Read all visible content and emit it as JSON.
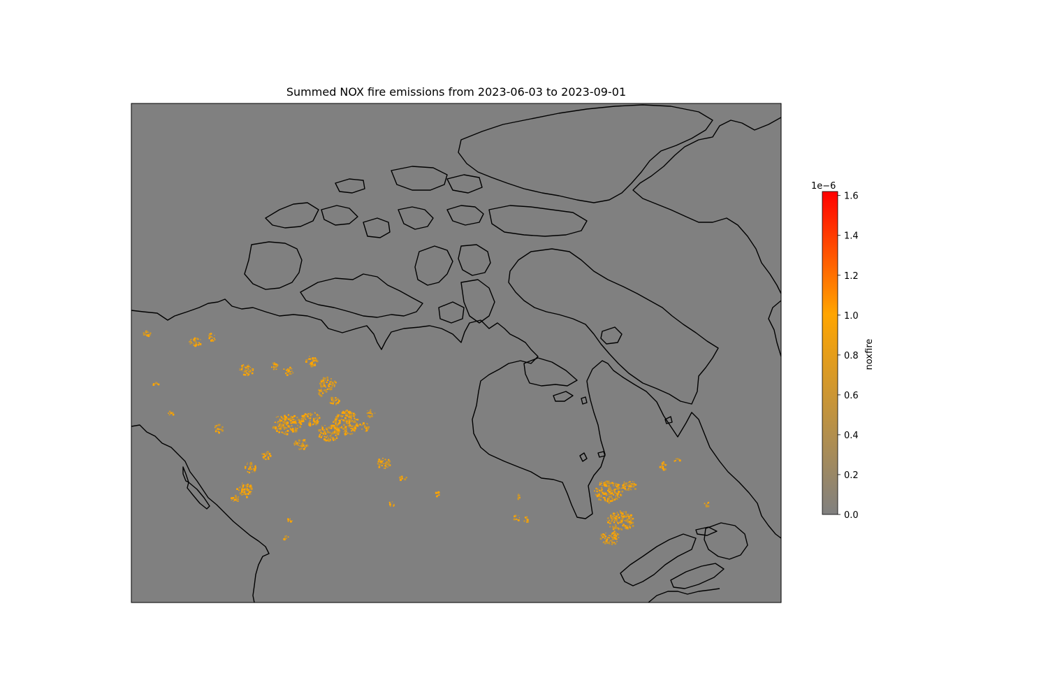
{
  "figure": {
    "title": "Summed NOX fire emissions from 2023-06-03 to 2023-09-01"
  },
  "map": {
    "background_color": "#808080",
    "coastline_color": "#000000",
    "fire_color_low": "#c8952f",
    "fire_color_high": "#ffa500"
  },
  "colorbar": {
    "label": "noxfire",
    "offset_text": "1e−6",
    "ticks": [
      "0.0",
      "0.2",
      "0.4",
      "0.6",
      "0.8",
      "1.0",
      "1.2",
      "1.4",
      "1.6"
    ],
    "min": 0.0,
    "max": 1.62,
    "colors": [
      "#808080",
      "#ffa500",
      "#ff0000"
    ]
  }
}
